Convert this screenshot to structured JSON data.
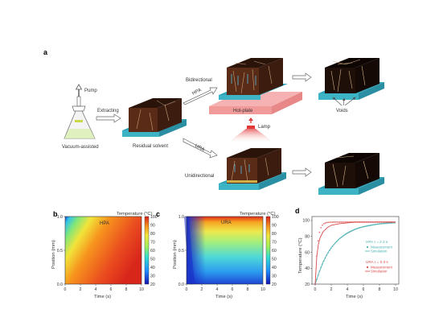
{
  "panels": {
    "a": {
      "label": "a",
      "pump": "Pump",
      "vacuum": "Vacuum-assisted",
      "extracting": "Extracting",
      "residual": "Residual solvent",
      "hpa": "HPA",
      "ura": "URA",
      "bidirectional": "Bidirectional",
      "unidirectional": "Unidirectional",
      "hotplate": "Hot-plate",
      "lamp": "Lamp",
      "voids": "Voids"
    },
    "b": {
      "label": "b",
      "title": "HPA",
      "colorbar_title": "Temperature (°C)",
      "xlabel": "Time (s)",
      "ylabel": "Position (mm)",
      "xticks": [
        "0",
        "2",
        "4",
        "6",
        "8",
        "10"
      ],
      "yticks": [
        "0.0",
        "0.5",
        "1.0"
      ],
      "cticks": [
        "20",
        "30",
        "40",
        "50",
        "60",
        "70",
        "80",
        "90",
        "100"
      ]
    },
    "c": {
      "label": "c",
      "title": "URA",
      "colorbar_title": "Temperature (°C)",
      "xlabel": "Time (s)",
      "ylabel": "Position (mm)",
      "xticks": [
        "0",
        "2",
        "4",
        "6",
        "8",
        "10"
      ],
      "yticks": [
        "0.0",
        "0.5",
        "1.0"
      ],
      "cticks": [
        "20",
        "30",
        "40",
        "50",
        "60",
        "70",
        "80",
        "90",
        "100"
      ]
    },
    "d": {
      "label": "d",
      "xlabel": "Time (s)",
      "ylabel": "Temperature (°C)",
      "xticks": [
        "0",
        "2",
        "4",
        "6",
        "8",
        "10"
      ],
      "yticks": [
        "20",
        "40",
        "60",
        "80",
        "100"
      ],
      "legend": {
        "hpa_header": "HPA τ = 2.3 s",
        "ura_header": "URA τ = 0.3 s",
        "measurement": "Measurement",
        "simulation": "Simulation"
      }
    }
  },
  "colors": {
    "teal": "#4fb0b0",
    "red": "#d94a4a",
    "hotplate": "#f4a6a6",
    "substrate": "#5bbfd0",
    "block": "#3a1f12"
  },
  "chart_data": {
    "type": "line",
    "xlabel": "Time (s)",
    "ylabel": "Temperature (°C)",
    "xlim": [
      0,
      10
    ],
    "ylim": [
      20,
      105
    ],
    "series": [
      {
        "name": "HPA τ = 2.3 s",
        "tau": 2.3,
        "x": [
          0,
          0.5,
          1,
          1.5,
          2,
          3,
          4,
          5,
          6,
          7,
          8,
          10
        ],
        "y": [
          20,
          35,
          48,
          58,
          66,
          77,
          84,
          89,
          92,
          94,
          96,
          98
        ]
      },
      {
        "name": "URA τ = 0.3 s",
        "tau": 0.3,
        "x": [
          0,
          0.2,
          0.4,
          0.6,
          1,
          1.5,
          2,
          3,
          4,
          5,
          6,
          8,
          10
        ],
        "y": [
          20,
          55,
          70,
          78,
          86,
          91,
          94,
          96,
          97,
          98,
          98,
          98,
          98
        ]
      }
    ]
  }
}
